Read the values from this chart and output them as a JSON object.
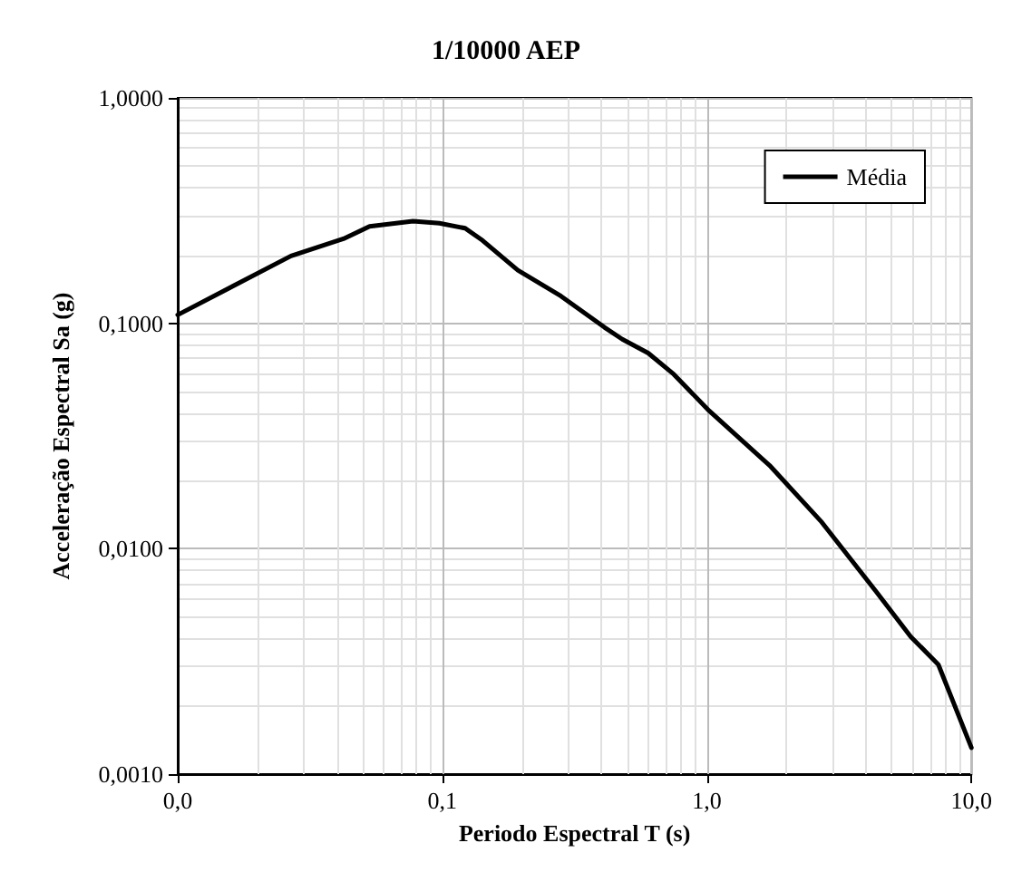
{
  "chart_data": {
    "type": "line",
    "title": "1/10000 AEP",
    "xlabel": "Periodo Espectral T (s)",
    "ylabel": "Acceleração Espectral Sa (g)",
    "x": [
      0.01,
      0.0268,
      0.0423,
      0.0531,
      0.0775,
      0.0975,
      0.122,
      0.142,
      0.193,
      0.281,
      0.41,
      0.479,
      0.6,
      0.75,
      1.02,
      1.74,
      2.72,
      4.36,
      5.9,
      7.5,
      10
    ],
    "series": [
      {
        "name": "Média",
        "color": "#000000",
        "values": [
          0.109,
          0.199,
          0.237,
          0.269,
          0.284,
          0.278,
          0.264,
          0.233,
          0.172,
          0.132,
          0.096,
          0.085,
          0.0738,
          0.0594,
          0.0409,
          0.0232,
          0.0131,
          0.00646,
          0.00407,
          0.00306,
          0.00131
        ]
      }
    ],
    "log": "xy",
    "xlim": [
      0.01,
      10
    ],
    "ylim": [
      0.001,
      1
    ],
    "xticks": [
      {
        "value": 0.01,
        "label": "0,0"
      },
      {
        "value": 0.1,
        "label": "0,1"
      },
      {
        "value": 1,
        "label": "1,0"
      },
      {
        "value": 10,
        "label": "10,0"
      }
    ],
    "yticks": [
      {
        "value": 0.001,
        "label": "0,0010"
      },
      {
        "value": 0.01,
        "label": "0,0100"
      },
      {
        "value": 0.1,
        "label": "0,1000"
      },
      {
        "value": 1,
        "label": "1,0000"
      }
    ],
    "grid": true,
    "legend": "top right",
    "marker": "none",
    "line_style": "solid"
  }
}
